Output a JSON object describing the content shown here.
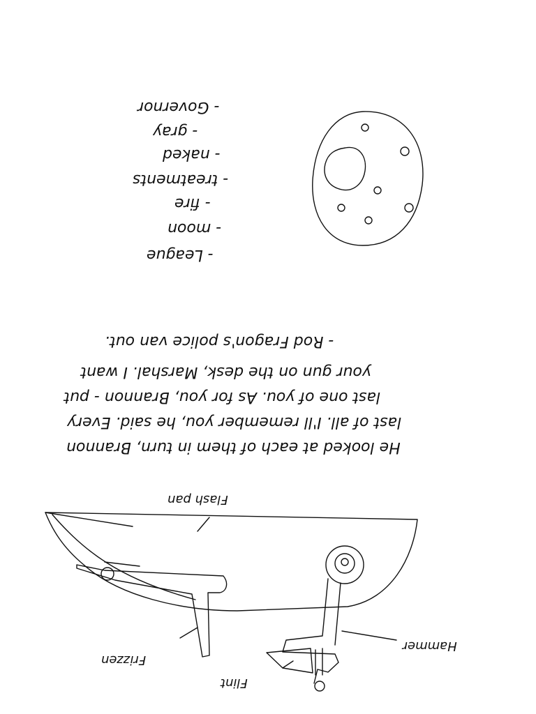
{
  "word_list": [
    "- Governor",
    "- gray",
    "- naked",
    "- treatments",
    "- fire",
    "- moon",
    "- League"
  ],
  "passage_lines": [
    "He looked at each of them in turn, Brannon",
    "last of all. I'll remember you, he said. Every",
    "last one of you. As for you, Brannon - put",
    "your gun on the desk, Marshal. I want",
    "- Rod Fragon's police van out."
  ],
  "diagram_labels": {
    "flash_pan": "Flash pan",
    "frizzen": "Frizzen",
    "hammer": "Hammer",
    "flint": "Flint"
  },
  "colors": {
    "ink": "#111111",
    "paper": "#ffffff"
  }
}
